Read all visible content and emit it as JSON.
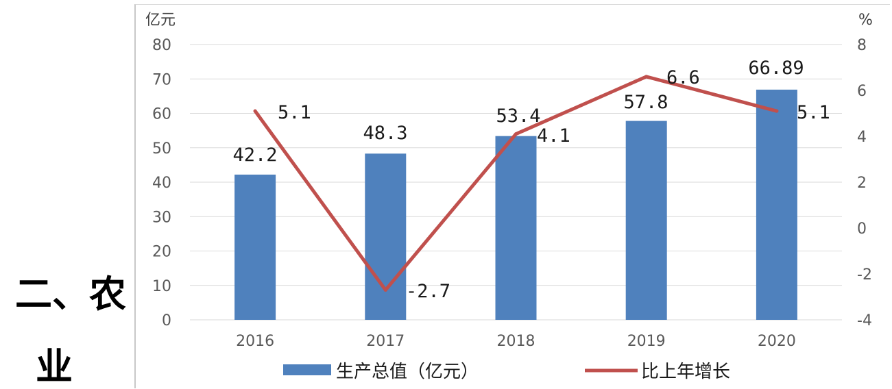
{
  "heading": {
    "line1": "二、农",
    "line2": "业"
  },
  "chart_data": {
    "type": "bar",
    "categories": [
      "2016",
      "2017",
      "2018",
      "2019",
      "2020"
    ],
    "series": [
      {
        "name": "生产总值（亿元）",
        "chart": "bar",
        "axis": "left",
        "values": [
          42.2,
          48.3,
          53.4,
          57.8,
          66.89
        ],
        "labels": [
          "42.2",
          "48.3",
          "53.4",
          "57.8",
          "66.89"
        ],
        "color": "#4f81bd"
      },
      {
        "name": "比上年增长",
        "chart": "line",
        "axis": "right",
        "values": [
          5.1,
          -2.7,
          4.1,
          6.6,
          5.1
        ],
        "labels": [
          "5.1",
          "-2.7",
          "4.1",
          "6.6",
          "5.1"
        ],
        "color": "#c0504d"
      }
    ],
    "y_left": {
      "unit": "亿元",
      "ylim": [
        0,
        80
      ],
      "ticks": [
        "0",
        "10",
        "20",
        "30",
        "40",
        "50",
        "60",
        "70",
        "80"
      ]
    },
    "y_right": {
      "unit": "%",
      "ylim": [
        -4,
        8
      ],
      "ticks": [
        "-4",
        "-2",
        "0",
        "2",
        "4",
        "6",
        "8"
      ]
    },
    "grid": true,
    "legend": "bottom"
  }
}
